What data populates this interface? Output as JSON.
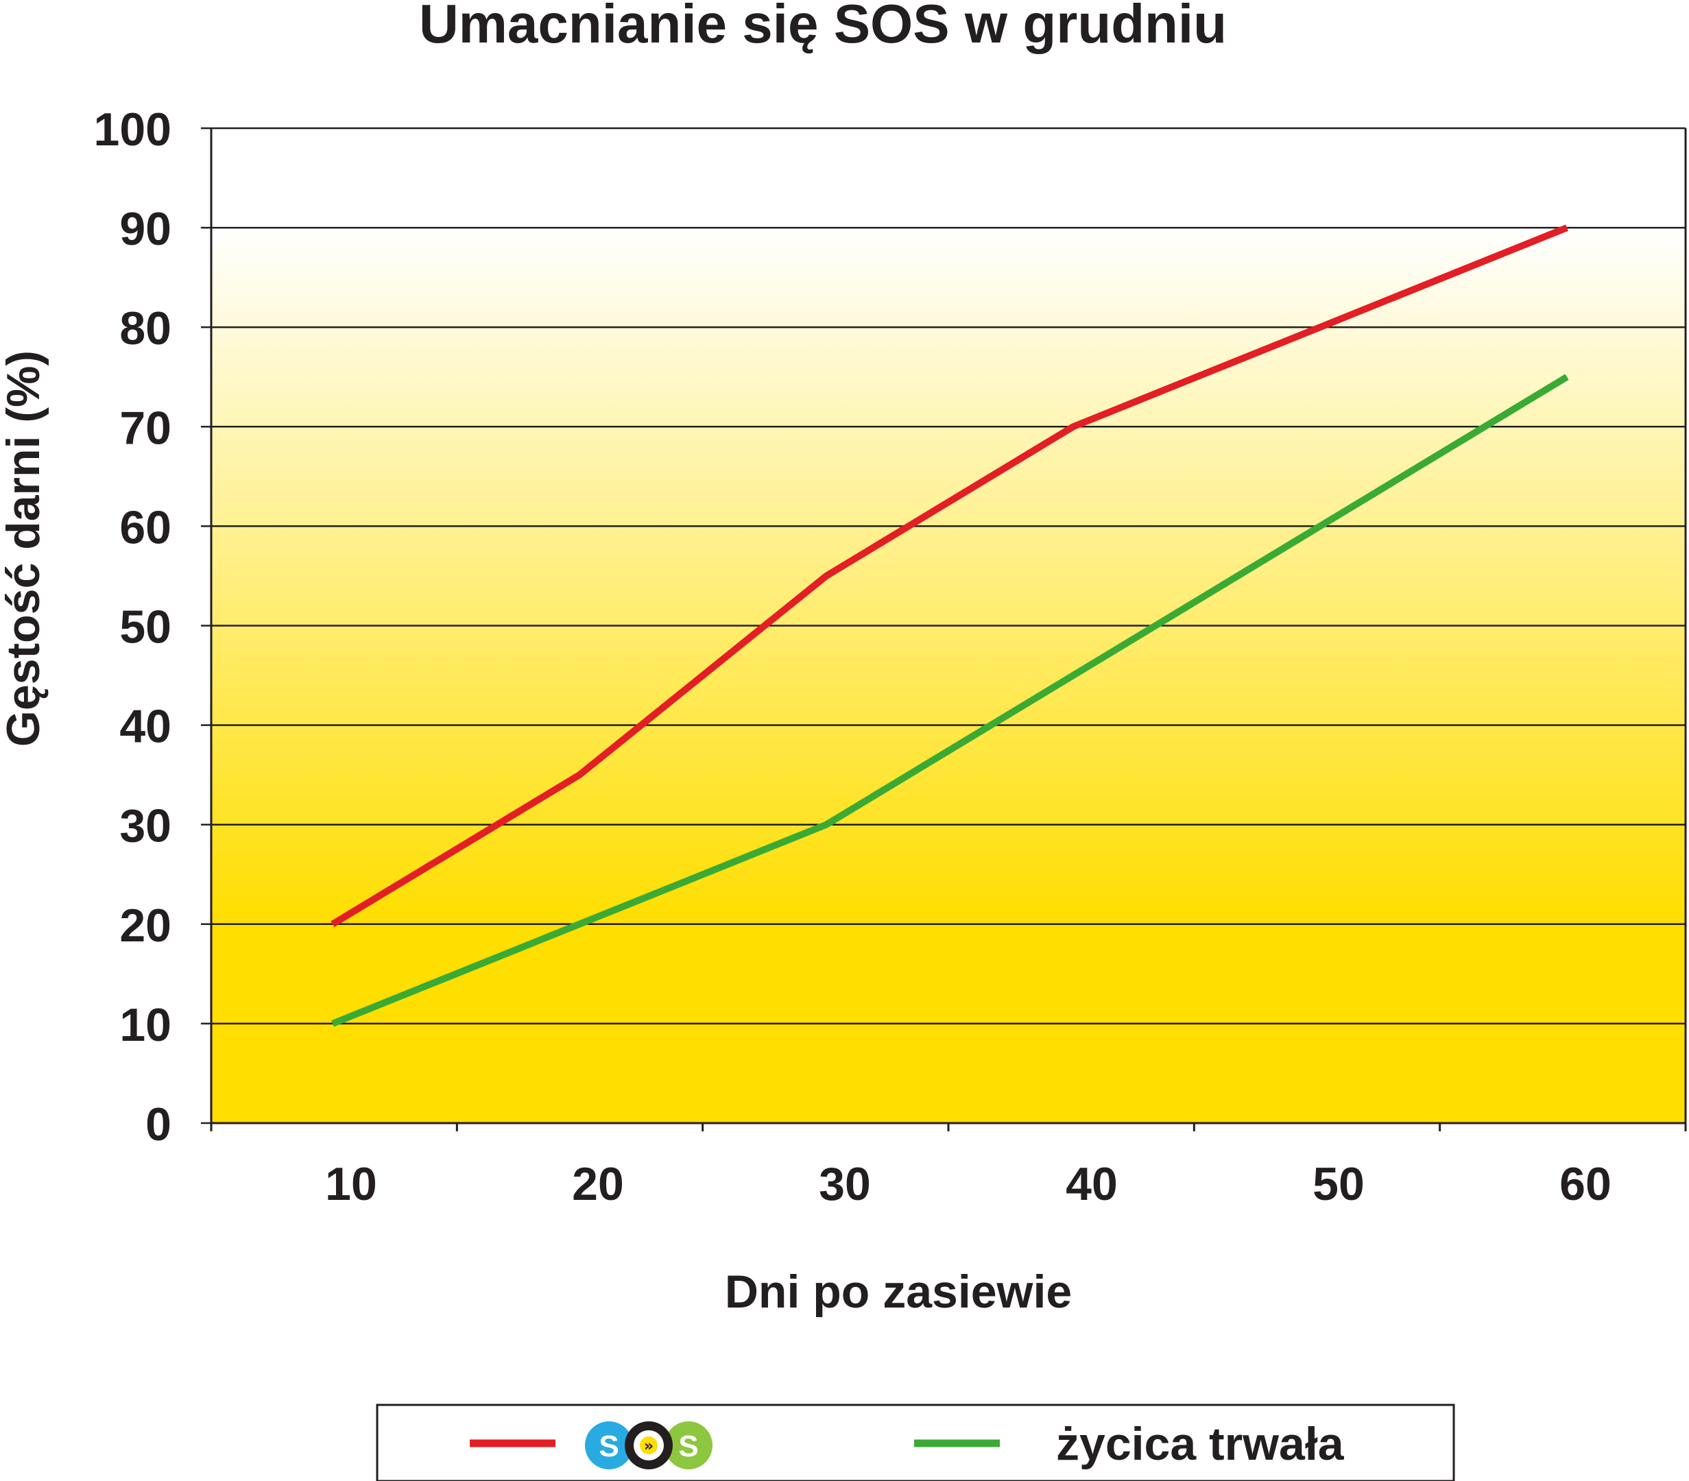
{
  "chart_data": {
    "type": "line",
    "title": "Umacnianie się SOS w grudniu",
    "xlabel": "Dni po zasiewie",
    "ylabel": "Gęstość darni  (%)",
    "categories": [
      10,
      20,
      30,
      40,
      50,
      60
    ],
    "x_tick_labels": [
      "10",
      "20",
      "30",
      "40",
      "50",
      "60"
    ],
    "y_tick_labels": [
      "0",
      "10",
      "20",
      "30",
      "40",
      "50",
      "60",
      "70",
      "80",
      "90",
      "100"
    ],
    "ylim": [
      0,
      100
    ],
    "y_ticks": [
      0,
      10,
      20,
      30,
      40,
      50,
      60,
      70,
      80,
      90,
      100
    ],
    "grid": true,
    "legend_position": "bottom",
    "series": [
      {
        "name": "SOS",
        "legend_logo": "sos-logo",
        "logo_letters": [
          "S",
          "O",
          "S"
        ],
        "color": "#e31e24",
        "values": [
          20,
          35,
          55,
          70,
          80,
          90
        ]
      },
      {
        "name": "życica trwała",
        "color": "#3aaa35",
        "values": [
          10,
          20,
          30,
          45,
          60,
          75
        ]
      }
    ],
    "background_gradient": [
      "#ffffff",
      "#ffde00"
    ],
    "logo_colors": {
      "s1": "#29abe2",
      "o": "#231f20",
      "s2": "#8dc63f",
      "chevron": "#ffde00"
    }
  }
}
